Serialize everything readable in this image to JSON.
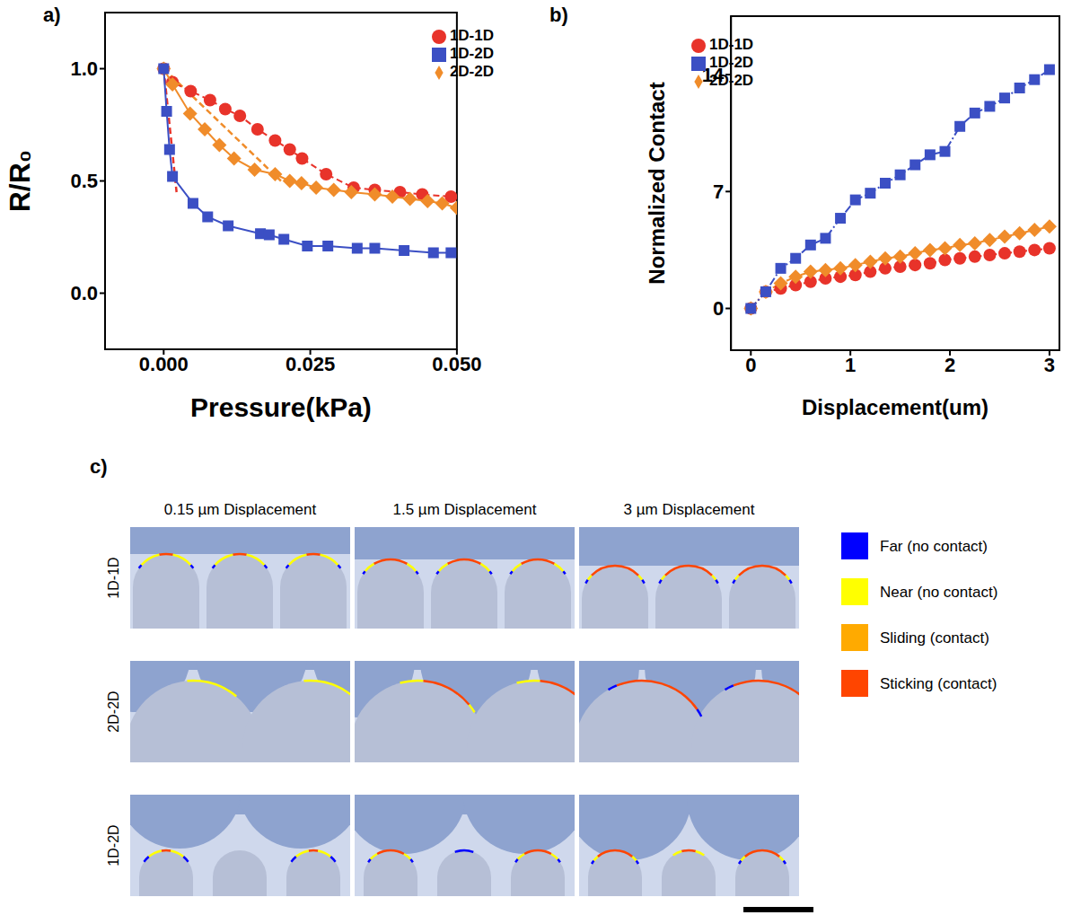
{
  "chart_data": [
    {
      "type": "scatter",
      "panel_label": "a)",
      "x_label": "Pressure(kPa)",
      "y_label": "R/R₀",
      "xlim": [
        -0.01,
        0.05
      ],
      "xticks": [
        {
          "value": 0,
          "label": "0.000"
        },
        {
          "value": 0.025,
          "label": "0.025"
        },
        {
          "value": 0.05,
          "label": "0.050"
        }
      ],
      "ylim": [
        -0.25,
        1.25
      ],
      "yticks": [
        {
          "value": 0,
          "label": "0.0"
        },
        {
          "value": 0.5,
          "label": "0.5"
        },
        {
          "value": 1,
          "label": "1.0"
        }
      ],
      "legend": "upper right",
      "series": [
        {
          "name": "1D-1D",
          "color": "#e8332a",
          "marker": "circle",
          "line_style": "dashed",
          "x": [
            0,
            0.0015,
            0.0046,
            0.0079,
            0.0105,
            0.013,
            0.016,
            0.019,
            0.0215,
            0.0236,
            0.0277,
            0.0324,
            0.036,
            0.0403,
            0.0441,
            0.049
          ],
          "values": [
            1.0,
            0.94,
            0.9,
            0.86,
            0.82,
            0.79,
            0.73,
            0.68,
            0.64,
            0.6,
            0.53,
            0.47,
            0.46,
            0.45,
            0.44,
            0.43
          ]
        },
        {
          "name": "2D-2D",
          "color": "#f08c2a",
          "marker": "diamond",
          "line_style": "solid",
          "x": [
            0,
            0.0015,
            0.0045,
            0.007,
            0.0095,
            0.012,
            0.0155,
            0.019,
            0.0215,
            0.0235,
            0.026,
            0.029,
            0.032,
            0.036,
            0.039,
            0.042,
            0.045,
            0.0475,
            0.05
          ],
          "values": [
            1.0,
            0.93,
            0.8,
            0.73,
            0.66,
            0.6,
            0.55,
            0.53,
            0.5,
            0.49,
            0.47,
            0.46,
            0.45,
            0.44,
            0.43,
            0.42,
            0.41,
            0.4,
            0.38
          ]
        },
        {
          "name": "1D-2D",
          "color": "#3b4fc4",
          "marker": "square",
          "line_style": "solid",
          "x": [
            0,
            0.0005,
            0.001,
            0.0015,
            0.005,
            0.0075,
            0.011,
            0.0165,
            0.018,
            0.0205,
            0.0245,
            0.028,
            0.033,
            0.036,
            0.041,
            0.046,
            0.049
          ],
          "values": [
            1.0,
            0.81,
            0.64,
            0.52,
            0.4,
            0.34,
            0.3,
            0.265,
            0.26,
            0.24,
            0.21,
            0.21,
            0.2,
            0.2,
            0.19,
            0.18,
            0.18
          ]
        }
      ],
      "fits": [
        {
          "color": "#e8332a",
          "line_style": "dashed",
          "x": [
            0,
            0.0022
          ],
          "values": [
            1.0,
            0.45
          ]
        },
        {
          "color": "#f08c2a",
          "line_style": "dashed",
          "x": [
            0,
            0.02
          ],
          "values": [
            1.0,
            0.5
          ]
        }
      ]
    },
    {
      "type": "line",
      "panel_label": "b)",
      "x_label": "Displacement(um)",
      "y_label": "Normalized Contact",
      "x": [
        0,
        0.15,
        0.3,
        0.45,
        0.6,
        0.75,
        0.9,
        1.05,
        1.2,
        1.35,
        1.5,
        1.65,
        1.8,
        1.95,
        2.1,
        2.25,
        2.4,
        2.55,
        2.7,
        2.85,
        3
      ],
      "xlim": [
        -0.2,
        3.1
      ],
      "xticks": [
        0,
        1,
        2,
        3
      ],
      "ylim": [
        -2.5,
        17.5
      ],
      "yticks": [
        0,
        7,
        14
      ],
      "legend": "upper left",
      "series": [
        {
          "name": "1D-1D",
          "color": "#e8332a",
          "marker": "circle",
          "line_style": "dashdot",
          "values": [
            0,
            1.0,
            1.2,
            1.4,
            1.6,
            1.8,
            1.9,
            2.0,
            2.2,
            2.4,
            2.5,
            2.6,
            2.7,
            2.9,
            3.0,
            3.1,
            3.2,
            3.3,
            3.4,
            3.5,
            3.6
          ]
        },
        {
          "name": "2D-2D",
          "color": "#f08c2a",
          "marker": "diamond",
          "line_style": "dashdot",
          "values": [
            0,
            1.0,
            1.5,
            1.9,
            2.2,
            2.3,
            2.4,
            2.6,
            2.8,
            3.0,
            3.1,
            3.3,
            3.5,
            3.6,
            3.8,
            3.9,
            4.1,
            4.3,
            4.5,
            4.7,
            4.9
          ]
        },
        {
          "name": "1D-2D",
          "color": "#3b4fc4",
          "marker": "square",
          "line_style": "dashdot",
          "values": [
            0,
            1.0,
            2.4,
            3.0,
            3.8,
            4.2,
            5.4,
            6.5,
            6.9,
            7.5,
            8.0,
            8.6,
            9.2,
            9.4,
            10.9,
            11.7,
            12.1,
            12.6,
            13.2,
            13.7,
            14.3
          ]
        }
      ]
    }
  ],
  "diagram": {
    "panel_label": "c)",
    "columns": [
      "0.15 µm Displacement",
      "1.5 µm Displacement",
      "3 µm Displacement"
    ],
    "rows": [
      "1D-1D",
      "2D-2D",
      "1D-2D"
    ],
    "legend": [
      {
        "label": "Far (no contact)",
        "color": "#0000ff"
      },
      {
        "label": "Near (no contact)",
        "color": "#ffff00"
      },
      {
        "label": "Sliding (contact)",
        "color": "#ffaa00"
      },
      {
        "label": "Sticking (contact)",
        "color": "#ff4500"
      }
    ]
  }
}
